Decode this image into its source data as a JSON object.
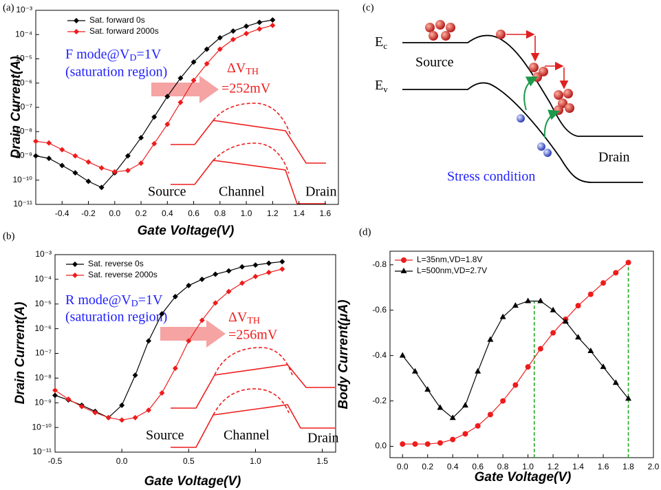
{
  "chart_data": [
    {
      "type": "line",
      "panel_label": "(a)",
      "x_label": "Gate Voltage(V)",
      "y_label": "Drain Current(A)",
      "log_y": true,
      "xlim": [
        -0.6,
        1.7
      ],
      "ylim": [
        1e-11,
        0.001
      ],
      "xticks": [
        -0.4,
        -0.2,
        {
          "value": 0,
          "label": "0.0"
        },
        0.2,
        0.4,
        0.6,
        0.8,
        {
          "value": 1,
          "label": "1.0"
        },
        1.2,
        1.4,
        1.6
      ],
      "yticks": [
        {
          "value": 1e-11,
          "label": "10⁻¹¹"
        },
        {
          "value": 1e-10,
          "label": "10⁻¹⁰"
        },
        {
          "value": 1e-09,
          "label": "10⁻⁹"
        },
        {
          "value": 1e-08,
          "label": "10⁻⁸"
        },
        {
          "value": 1e-07,
          "label": "10⁻⁷"
        },
        {
          "value": 1e-06,
          "label": "10⁻⁶"
        },
        {
          "value": 1e-05,
          "label": "10⁻⁵"
        },
        {
          "value": 0.0001,
          "label": "10⁻⁴"
        },
        {
          "value": 0.001,
          "label": "10⁻³"
        }
      ],
      "legend": "upper left",
      "x": [
        -0.6,
        -0.5,
        -0.4,
        -0.3,
        -0.2,
        -0.1,
        0,
        0.1,
        0.2,
        0.3,
        0.4,
        0.5,
        0.6,
        0.7,
        0.8,
        0.9,
        1.0,
        1.1,
        1.2
      ],
      "series": [
        {
          "name": "Sat. forward 0s",
          "color": "#000000",
          "marker": "diamond",
          "values": [
            1e-09,
            7.9e-10,
            4e-10,
            2e-10,
            8.9e-11,
            5e-11,
            2e-10,
            1e-09,
            5.6e-09,
            4e-08,
            2.8e-07,
            1.6e-06,
            7.4e-06,
            2.5e-05,
            7.4e-05,
            0.00014,
            0.00022,
            0.00032,
            0.0004
          ]
        },
        {
          "name": "Sat. forward 2000s",
          "color": "#ee1c1c",
          "marker": "diamond",
          "values": [
            4e-09,
            3.4e-09,
            1.8e-09,
            1e-09,
            5.6e-10,
            3.2e-10,
            2.2e-10,
            2.5e-10,
            5e-10,
            3.2e-09,
            2e-08,
            1.6e-07,
            1.3e-06,
            6.3e-06,
            2.5e-05,
            6.3e-05,
            0.00011,
            0.00017,
            0.00024
          ]
        }
      ],
      "annotations": {
        "mode": [
          "F mode@V",
          "D",
          "=1V"
        ],
        "region": "(saturation region)",
        "shift": [
          "ΔV",
          "TH"
        ],
        "shift_value": "=252mV",
        "inset_labels": [
          "Source",
          "Channel",
          "Drain"
        ]
      }
    },
    {
      "type": "line",
      "panel_label": "(b)",
      "x_label": "Gate Voltage(V)",
      "y_label": "Drain Current(A)",
      "log_y": true,
      "xlim": [
        -0.5,
        1.6
      ],
      "ylim": [
        1e-11,
        0.001
      ],
      "xticks": [
        -0.5,
        {
          "value": 0,
          "label": "0.0"
        },
        0.5,
        {
          "value": 1,
          "label": "1.0"
        },
        1.5
      ],
      "yticks": [
        {
          "value": 1e-11,
          "label": "10⁻¹¹"
        },
        {
          "value": 1e-10,
          "label": "10⁻¹⁰"
        },
        {
          "value": 1e-09,
          "label": "10⁻⁹"
        },
        {
          "value": 1e-08,
          "label": "10⁻⁸"
        },
        {
          "value": 1e-07,
          "label": "10⁻⁷"
        },
        {
          "value": 1e-06,
          "label": "10⁻⁶"
        },
        {
          "value": 1e-05,
          "label": "10⁻⁵"
        },
        {
          "value": 0.0001,
          "label": "10⁻⁴"
        },
        {
          "value": 0.001,
          "label": "10⁻³"
        }
      ],
      "legend": "upper left",
      "x": [
        -0.5,
        -0.4,
        -0.3,
        -0.2,
        -0.1,
        0,
        0.1,
        0.2,
        0.3,
        0.4,
        0.5,
        0.6,
        0.7,
        0.8,
        0.9,
        1.0,
        1.1,
        1.2
      ],
      "series": [
        {
          "name": "Sat. reverse 0s",
          "color": "#000000",
          "marker": "diamond",
          "values": [
            2e-09,
            1.3e-09,
            7.9e-10,
            4.5e-10,
            2.5e-10,
            7.9e-10,
            1.3e-08,
            3.2e-07,
            4e-06,
            2e-05,
            5.6e-05,
            0.0001,
            0.00016,
            0.00022,
            0.00032,
            0.00038,
            0.00045,
            0.00052
          ]
        },
        {
          "name": "Sat. reverse 2000s",
          "color": "#ee1c1c",
          "marker": "diamond",
          "values": [
            3.2e-09,
            1.4e-09,
            7e-10,
            4e-10,
            2.5e-10,
            2e-10,
            2.5e-10,
            5e-10,
            2.5e-09,
            2.5e-08,
            3.2e-07,
            2.2e-06,
            1.1e-05,
            3.2e-05,
            7e-05,
            0.00013,
            0.00019,
            0.00026
          ]
        }
      ],
      "annotations": {
        "mode": [
          "R mode@V",
          "D",
          "=1V"
        ],
        "region": "(saturation region)",
        "shift": [
          "ΔV",
          "TH"
        ],
        "shift_value": "=256mV",
        "inset_labels": [
          "Source",
          "Channel",
          "Drain"
        ]
      }
    },
    {
      "type": "line",
      "panel_label": "(d)",
      "x_label": "Gate Voltage(V)",
      "y_label": "Body Current(μA)",
      "log_y": false,
      "xlim": [
        -0.1,
        2.0
      ],
      "ylim": [
        0.05,
        -0.86
      ],
      "xticks": [
        {
          "value": 0,
          "label": "0.0"
        },
        0.2,
        0.4,
        0.6,
        0.8,
        {
          "value": 1,
          "label": "1.0"
        },
        1.2,
        1.4,
        1.6,
        1.8,
        {
          "value": 2,
          "label": "2.0"
        }
      ],
      "yticks": [
        {
          "value": 0,
          "label": "0.0"
        },
        -0.2,
        -0.4,
        -0.6,
        -0.8
      ],
      "legend": "upper left",
      "x": [
        0,
        0.1,
        0.2,
        0.3,
        0.4,
        0.5,
        0.6,
        0.7,
        0.8,
        0.9,
        1.0,
        1.1,
        1.2,
        1.3,
        1.4,
        1.5,
        1.6,
        1.7,
        1.8
      ],
      "series": [
        {
          "name": "L=35nm,VD=1.8V",
          "color": "#ee1c1c",
          "marker": "circle",
          "values": [
            -0.01,
            -0.01,
            -0.01,
            -0.015,
            -0.03,
            -0.055,
            -0.09,
            -0.14,
            -0.2,
            -0.27,
            -0.35,
            -0.43,
            -0.5,
            -0.56,
            -0.62,
            -0.67,
            -0.72,
            -0.765,
            -0.81
          ]
        },
        {
          "name": "L=500nm,VD=2.7V",
          "color": "#000000",
          "marker": "triangle",
          "values": [
            -0.4,
            -0.33,
            -0.25,
            -0.17,
            -0.125,
            -0.18,
            -0.33,
            -0.47,
            -0.57,
            -0.62,
            -0.64,
            -0.64,
            -0.6,
            -0.55,
            -0.48,
            -0.42,
            -0.35,
            -0.28,
            -0.21
          ]
        }
      ],
      "vlines": [
        1.05,
        1.8
      ],
      "vline_color": "#22aa22"
    }
  ],
  "diagram": {
    "panel_label": "(c)",
    "ec": [
      "E",
      "c"
    ],
    "ev": [
      "E",
      "v"
    ],
    "source": "Source",
    "drain": "Drain",
    "caption": "Stress condition"
  }
}
